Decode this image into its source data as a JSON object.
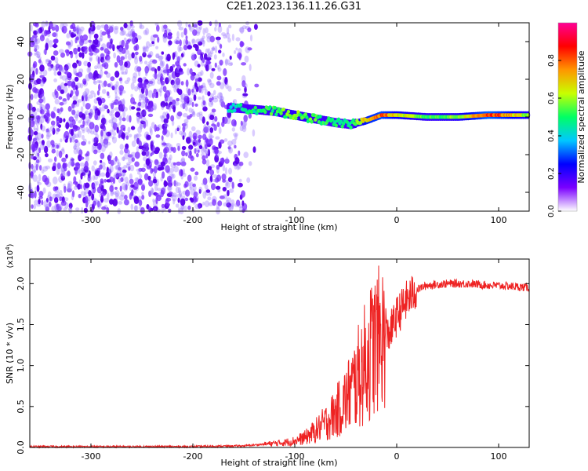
{
  "title": "C2E1.2023.136.11.26.G31",
  "chart_data": [
    {
      "type": "heatmap",
      "xlabel": "Height of straight line (km)",
      "ylabel": "Frequency (Hz)",
      "xlim": [
        -360,
        130
      ],
      "ylim": [
        -50,
        50
      ],
      "xticks": [
        -300,
        -200,
        -100,
        0,
        100
      ],
      "yticks": [
        -40,
        -20,
        0,
        20,
        40
      ],
      "colorbar": {
        "label": "Normalized spectral amplitude",
        "range": [
          0.0,
          1.0
        ],
        "ticks": [
          "0.0",
          "0.2",
          "0.4",
          "0.6",
          "0.8"
        ],
        "colors": [
          "#ffffff",
          "#7a00ff",
          "#0000ff",
          "#00c8ff",
          "#00ff64",
          "#c8ff00",
          "#ff9600",
          "#ff0000",
          "#ff0096"
        ]
      },
      "noise_region_x": [
        -360,
        -165
      ],
      "trace": {
        "x": [
          -165,
          -140,
          -120,
          -100,
          -80,
          -60,
          -45,
          -30,
          -15,
          0,
          30,
          60,
          90,
          130
        ],
        "center_freq_hz": [
          5,
          4,
          3,
          1,
          -1,
          -3,
          -4,
          -2,
          1,
          1,
          0,
          0,
          1,
          1
        ],
        "peak_amplitude": [
          0.45,
          0.5,
          0.55,
          0.6,
          0.55,
          0.5,
          0.5,
          0.75,
          0.85,
          0.7,
          0.55,
          0.6,
          0.9,
          0.6
        ]
      }
    },
    {
      "type": "line",
      "xlabel": "Height of straight line (km)",
      "ylabel": "SNR (10 * v/v)",
      "yscale_label": "(x10",
      "yscale_exponent": "4",
      "xlim": [
        -360,
        130
      ],
      "ylim": [
        0.0,
        2.3
      ],
      "xticks": [
        -300,
        -200,
        -100,
        0,
        100
      ],
      "yticks": [
        "0.0",
        "0.5",
        "1.0",
        "1.5",
        "2.0"
      ],
      "color": "#ee2222",
      "series": [
        {
          "x": [
            -360,
            -300,
            -250,
            -200,
            -150,
            -130,
            -110,
            -100,
            -90,
            -80,
            -70,
            -60,
            -50,
            -40,
            -30,
            -20,
            -15,
            -10,
            -5,
            0,
            10,
            20,
            30,
            50,
            70,
            90,
            110,
            130
          ],
          "values": [
            0.01,
            0.01,
            0.01,
            0.01,
            0.02,
            0.04,
            0.06,
            0.08,
            0.12,
            0.2,
            0.3,
            0.42,
            0.58,
            0.8,
            1.05,
            1.3,
            1.35,
            1.35,
            1.45,
            1.6,
            1.8,
            1.93,
            1.98,
            2.0,
            2.0,
            1.98,
            1.97,
            1.95
          ]
        }
      ]
    }
  ]
}
